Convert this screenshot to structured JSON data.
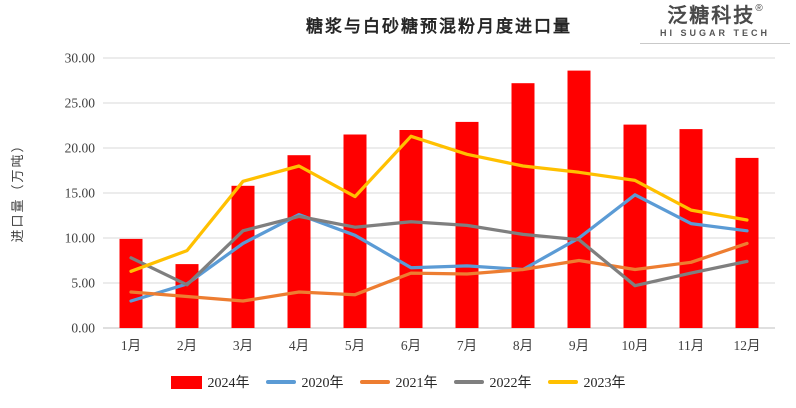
{
  "header": {
    "logo": {
      "name": "泛糖科技",
      "reg_mark": "®",
      "subtitle": "HI SUGAR TECH"
    }
  },
  "chart_data": {
    "type": "bar+line combo",
    "title": "糖浆与白砂糖预混粉月度进口量",
    "xlabel": "",
    "ylabel": "进口量（万吨）",
    "ylim": [
      0,
      30
    ],
    "ytick_step": 5,
    "ytick_labels": [
      "0.00",
      "5.00",
      "10.00",
      "15.00",
      "20.00",
      "25.00",
      "30.00"
    ],
    "grid": "horizontal",
    "legend_position": "bottom",
    "categories": [
      "1月",
      "2月",
      "3月",
      "4月",
      "5月",
      "6月",
      "7月",
      "8月",
      "9月",
      "10月",
      "11月",
      "12月"
    ],
    "bar_series": {
      "name": "2024年",
      "color": "#FF0000",
      "values": [
        9.9,
        7.1,
        15.8,
        19.2,
        21.5,
        22.0,
        22.9,
        27.2,
        28.6,
        22.6,
        22.1,
        18.9
      ]
    },
    "line_series": [
      {
        "name": "2020年",
        "color": "#5B9BD5",
        "values": [
          3.0,
          4.9,
          9.4,
          12.6,
          10.3,
          6.7,
          6.9,
          6.5,
          10.0,
          14.8,
          11.6,
          10.8
        ]
      },
      {
        "name": "2021年",
        "color": "#ED7D31",
        "values": [
          4.0,
          3.5,
          3.0,
          4.0,
          3.7,
          6.1,
          6.0,
          6.5,
          7.5,
          6.5,
          7.3,
          9.4
        ]
      },
      {
        "name": "2022年",
        "color": "#7F7F7F",
        "values": [
          7.8,
          4.8,
          10.8,
          12.4,
          11.2,
          11.8,
          11.4,
          10.4,
          9.8,
          4.7,
          6.1,
          7.4
        ]
      },
      {
        "name": "2023年",
        "color": "#FFC000",
        "values": [
          6.3,
          8.6,
          16.3,
          18.0,
          14.6,
          21.3,
          19.3,
          18.0,
          17.3,
          16.4,
          13.1,
          12.0
        ]
      }
    ],
    "legend_order": [
      "2024年",
      "2020年",
      "2021年",
      "2022年",
      "2023年"
    ],
    "colors": {
      "gridline": "#D9D9D9",
      "axis_line": "#BFBFBF",
      "tick_text": "#404040"
    }
  }
}
